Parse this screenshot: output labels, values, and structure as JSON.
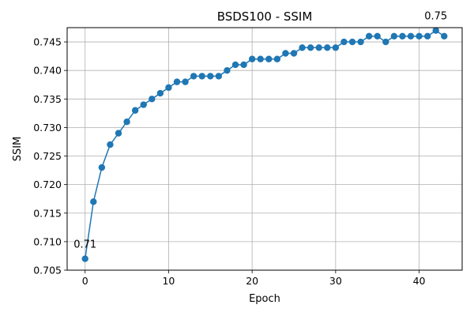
{
  "chart_data": {
    "type": "line",
    "title": "BSDS100 - SSIM",
    "xlabel": "Epoch",
    "ylabel": "SSIM",
    "xlim": [
      -2.15,
      45.15
    ],
    "ylim": [
      0.705,
      0.7475
    ],
    "xticks": [
      0,
      10,
      20,
      30,
      40
    ],
    "yticks": [
      0.705,
      0.71,
      0.715,
      0.72,
      0.725,
      0.73,
      0.735,
      0.74,
      0.745
    ],
    "ytick_labels": [
      "0.705",
      "0.710",
      "0.715",
      "0.720",
      "0.725",
      "0.730",
      "0.735",
      "0.740",
      "0.745"
    ],
    "grid": true,
    "color": "#1f77b4",
    "marker": "circle",
    "x": [
      0,
      1,
      2,
      3,
      4,
      5,
      6,
      7,
      8,
      9,
      10,
      11,
      12,
      13,
      14,
      15,
      16,
      17,
      18,
      19,
      20,
      21,
      22,
      23,
      24,
      25,
      26,
      27,
      28,
      29,
      30,
      31,
      32,
      33,
      34,
      35,
      36,
      37,
      38,
      39,
      40,
      41,
      42,
      43
    ],
    "y": [
      0.707,
      0.717,
      0.723,
      0.727,
      0.729,
      0.731,
      0.733,
      0.734,
      0.735,
      0.736,
      0.737,
      0.738,
      0.738,
      0.739,
      0.739,
      0.739,
      0.739,
      0.74,
      0.741,
      0.741,
      0.742,
      0.742,
      0.742,
      0.742,
      0.743,
      0.743,
      0.744,
      0.744,
      0.744,
      0.744,
      0.744,
      0.745,
      0.745,
      0.745,
      0.746,
      0.746,
      0.745,
      0.746,
      0.746,
      0.746,
      0.746,
      0.746,
      0.747,
      0.746
    ],
    "annotations": [
      {
        "text": "0.71",
        "x": 0,
        "y": 0.707
      },
      {
        "text": "0.75",
        "x": 42,
        "y": 0.747
      }
    ]
  }
}
